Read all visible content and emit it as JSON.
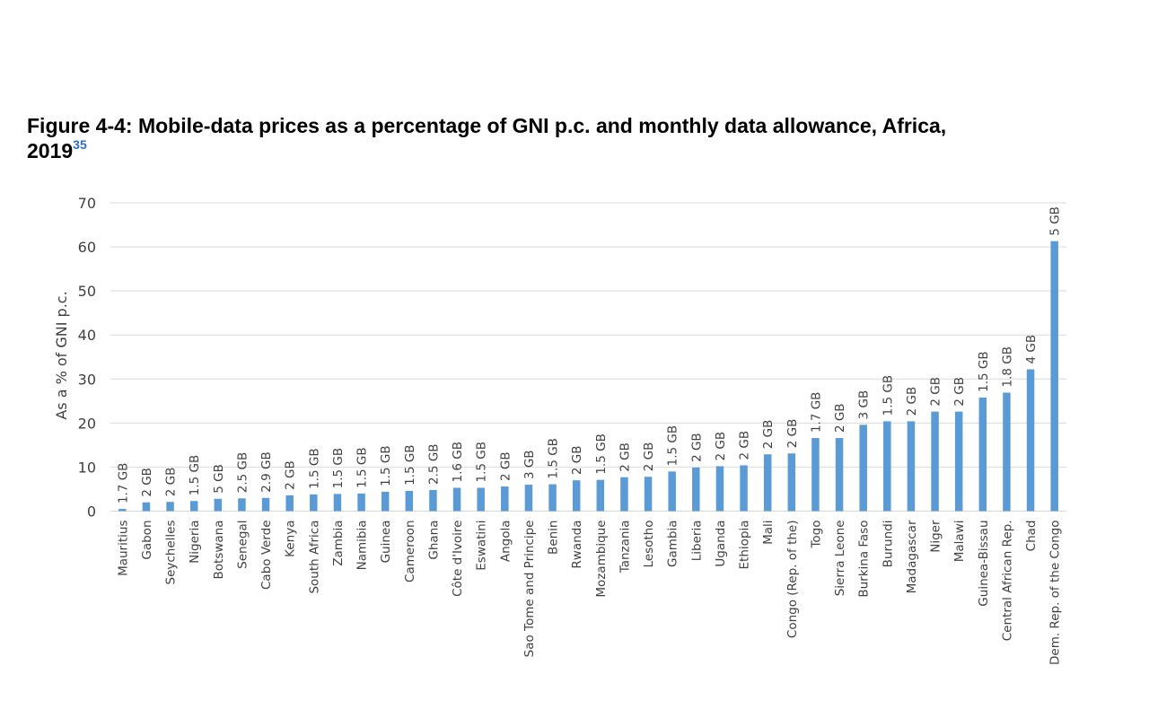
{
  "figure": {
    "title_line1": "Figure 4-4: Mobile-data prices as a percentage of GNI p.c. and monthly data allowance, Africa,",
    "title_line2": "2019",
    "footnote_ref": "35"
  },
  "chart_data": {
    "type": "bar",
    "title": "Figure 4-4: Mobile-data prices as a percentage of GNI p.c. and monthly data allowance, Africa, 2019",
    "xlabel": "",
    "ylabel": "As a % of GNI p.c.",
    "ylim": [
      0,
      70
    ],
    "yticks": [
      0,
      10,
      20,
      30,
      40,
      50,
      60,
      70
    ],
    "grid": true,
    "legend": "none",
    "bar_color": "#5B9BD5",
    "categories": [
      "Mauritius",
      "Gabon",
      "Seychelles",
      "Nigeria",
      "Botswana",
      "Senegal",
      "Cabo Verde",
      "Kenya",
      "South Africa",
      "Zambia",
      "Namibia",
      "Guinea",
      "Cameroon",
      "Ghana",
      "Côte d'Ivoire",
      "Eswatini",
      "Angola",
      "Sao Tome and Principe",
      "Benin",
      "Rwanda",
      "Mozambique",
      "Tanzania",
      "Lesotho",
      "Gambia",
      "Liberia",
      "Uganda",
      "Ethiopia",
      "Mali",
      "Congo (Rep. of the)",
      "Togo",
      "Sierra Leone",
      "Burkina Faso",
      "Burundi",
      "Madagascar",
      "Niger",
      "Malawi",
      "Guinea-Bissau",
      "Central African Rep.",
      "Chad",
      "Dem. Rep. of the Congo"
    ],
    "values": [
      0.5,
      2.0,
      2.1,
      2.3,
      2.8,
      2.9,
      3.0,
      3.6,
      3.8,
      3.9,
      4.0,
      4.4,
      4.6,
      4.8,
      5.3,
      5.3,
      5.6,
      6.0,
      6.1,
      7.0,
      7.1,
      7.7,
      7.8,
      9.0,
      9.9,
      10.2,
      10.4,
      12.9,
      13.1,
      16.6,
      16.6,
      19.6,
      20.4,
      20.4,
      22.6,
      22.6,
      25.8,
      26.9,
      32.2,
      61.3
    ],
    "data_labels": [
      "1.7 GB",
      "2 GB",
      "2 GB",
      "1.5 GB",
      "5 GB",
      "2.5 GB",
      "2.9 GB",
      "2 GB",
      "1.5 GB",
      "1.5 GB",
      "1.5 GB",
      "1.5 GB",
      "1.5 GB",
      "2.5 GB",
      "1.6 GB",
      "1.5 GB",
      "2 GB",
      "3 GB",
      "1.5 GB",
      "2 GB",
      "1.5 GB",
      "2 GB",
      "2 GB",
      "1.5 GB",
      "2 GB",
      "2 GB",
      "2 GB",
      "2 GB",
      "2 GB",
      "1.7 GB",
      "2 GB",
      "3 GB",
      "1.5 GB",
      "2 GB",
      "2 GB",
      "2 GB",
      "1.5 GB",
      "1.8 GB",
      "4 GB",
      "5 GB"
    ]
  }
}
